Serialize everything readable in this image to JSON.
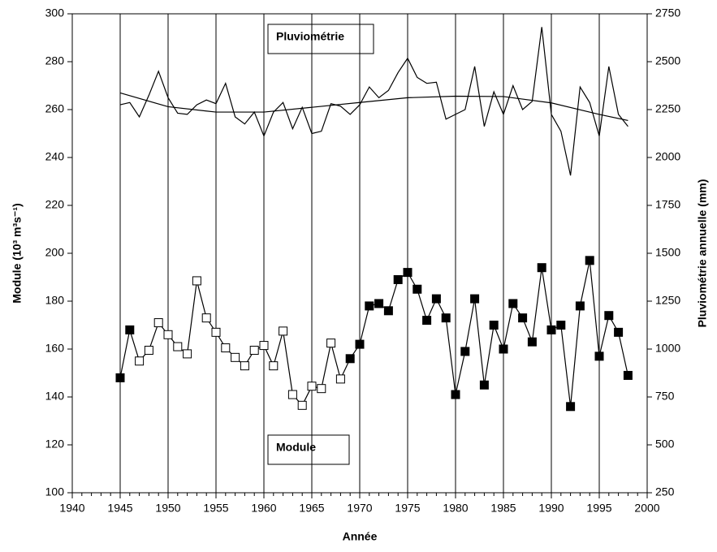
{
  "chart_data": {
    "type": "line",
    "x_label": "Année",
    "y_label": "Module  (10³ m³s⁻¹)",
    "y2_label": "Pluviométrie annuelle  (mm)",
    "annotations": [
      "Pluviométrie",
      "Module"
    ],
    "xlim": [
      1940,
      2000
    ],
    "xticks": [
      1940,
      1945,
      1950,
      1955,
      1960,
      1965,
      1970,
      1975,
      1980,
      1985,
      1990,
      1995,
      2000
    ],
    "xgrid": [
      1945,
      1950,
      1955,
      1960,
      1965,
      1970,
      1975,
      1980,
      1985,
      1990,
      1995
    ],
    "ylim": [
      100,
      300
    ],
    "yticks": [
      100,
      120,
      140,
      160,
      180,
      200,
      220,
      240,
      260,
      280,
      300
    ],
    "y2lim": [
      250,
      2750
    ],
    "y2ticks": [
      250,
      500,
      750,
      1000,
      1250,
      1500,
      1750,
      2000,
      2250,
      2500,
      2750
    ],
    "x": [
      1945,
      1946,
      1947,
      1948,
      1949,
      1950,
      1951,
      1952,
      1953,
      1954,
      1955,
      1956,
      1957,
      1958,
      1959,
      1960,
      1961,
      1962,
      1963,
      1964,
      1965,
      1966,
      1967,
      1968,
      1969,
      1970,
      1971,
      1972,
      1973,
      1974,
      1975,
      1976,
      1977,
      1978,
      1979,
      1980,
      1981,
      1982,
      1983,
      1984,
      1985,
      1986,
      1987,
      1988,
      1989,
      1990,
      1991,
      1992,
      1993,
      1994,
      1995,
      1996,
      1997,
      1998
    ],
    "series": [
      {
        "axis": "y",
        "color": "#000000",
        "values": [
          148,
          168,
          155,
          159.5,
          171,
          166,
          161,
          158,
          188.5,
          173,
          167,
          160.5,
          156.5,
          153,
          159.5,
          161.5,
          153,
          167.5,
          141,
          136.5,
          144.5,
          143.5,
          162.5,
          147.5,
          156,
          162,
          178,
          179,
          176,
          189,
          192,
          185,
          172,
          181,
          173,
          141,
          159,
          181,
          145,
          170,
          160,
          179,
          173,
          163,
          194,
          168,
          170,
          136,
          178,
          197,
          157,
          174,
          167,
          149
        ],
        "marker_fills": [
          "#000000",
          "#000000",
          "#ffffff",
          "#ffffff",
          "#ffffff",
          "#ffffff",
          "#ffffff",
          "#ffffff",
          "#ffffff",
          "#ffffff",
          "#ffffff",
          "#ffffff",
          "#ffffff",
          "#ffffff",
          "#ffffff",
          "#ffffff",
          "#ffffff",
          "#ffffff",
          "#ffffff",
          "#ffffff",
          "#ffffff",
          "#ffffff",
          "#ffffff",
          "#ffffff",
          "#000000",
          "#000000",
          "#000000",
          "#000000",
          "#000000",
          "#000000",
          "#000000",
          "#000000",
          "#000000",
          "#000000",
          "#000000",
          "#000000",
          "#000000",
          "#000000",
          "#000000",
          "#000000",
          "#000000",
          "#000000",
          "#000000",
          "#000000",
          "#000000",
          "#000000",
          "#000000",
          "#000000",
          "#000000",
          "#000000",
          "#000000",
          "#000000",
          "#000000",
          "#000000"
        ]
      },
      {
        "axis": "y2",
        "color": "#000000",
        "values": [
          2275,
          2287,
          2212,
          2325,
          2450,
          2312,
          2231,
          2225,
          2275,
          2300,
          2281,
          2387,
          2212,
          2175,
          2237,
          2112,
          2237,
          2287,
          2150,
          2262,
          2125,
          2137,
          2281,
          2268,
          2225,
          2275,
          2368,
          2312,
          2350,
          2443,
          2518,
          2418,
          2387,
          2393,
          2200,
          2225,
          2250,
          2475,
          2162,
          2343,
          2225,
          2375,
          2250,
          2293,
          2681,
          2225,
          2137,
          1906,
          2368,
          2287,
          2112,
          2475,
          2225,
          2162
        ]
      },
      {
        "axis": "y2",
        "color": "#000000",
        "x": [
          1945,
          1950,
          1955,
          1960,
          1965,
          1970,
          1975,
          1980,
          1985,
          1990,
          1995,
          1998
        ],
        "values": [
          2337,
          2265,
          2237,
          2237,
          2262,
          2287,
          2312,
          2320,
          2318,
          2285,
          2225,
          2193
        ]
      }
    ]
  }
}
